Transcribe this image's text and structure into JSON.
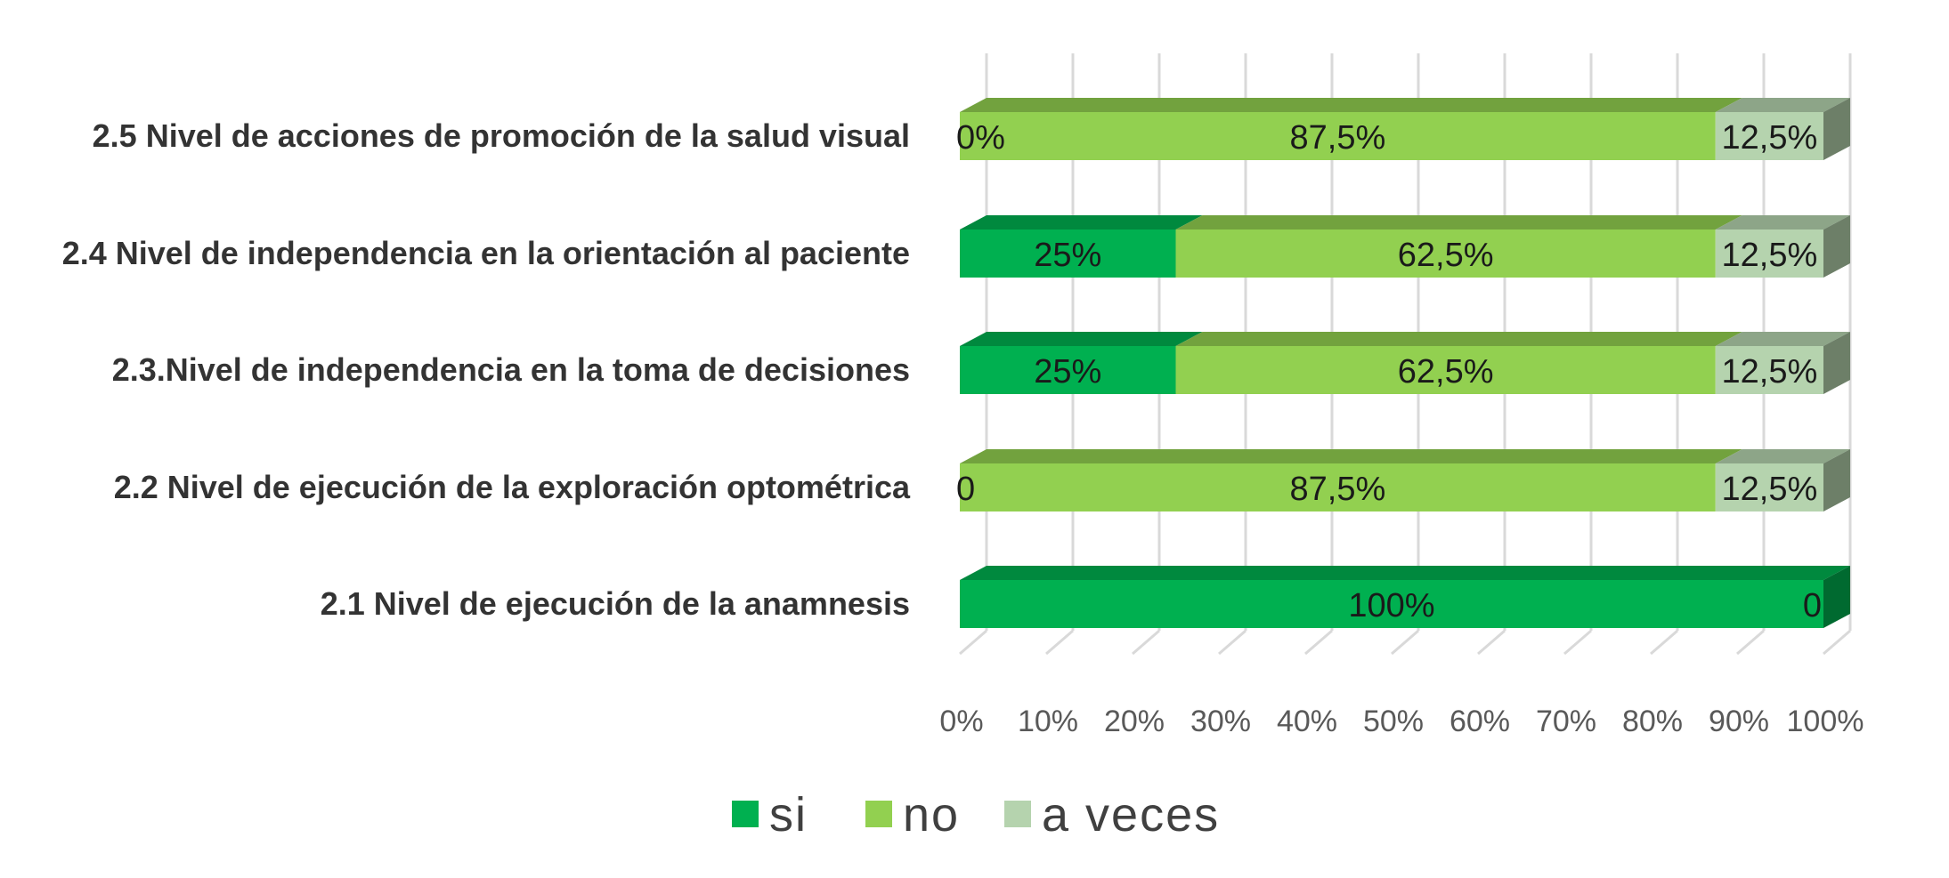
{
  "chart_data": {
    "type": "bar",
    "orientation": "horizontal",
    "stacked": "100%",
    "style": "3d",
    "categories": [
      "2.5 Nivel de acciones de promoción de la salud visual",
      "2.4 Nivel de independencia en la orientación al paciente",
      "2.3.Nivel de independencia en la toma de decisiones",
      "2.2 Nivel de ejecución de la exploración optométrica",
      "2.1 Nivel de ejecución de la anamnesis"
    ],
    "series": [
      {
        "name": "si",
        "color": "#00B050",
        "values": [
          0,
          25,
          25,
          0,
          100
        ],
        "labels": [
          "0%",
          "25%",
          "25%",
          "0",
          "100%"
        ]
      },
      {
        "name": "no",
        "color": "#92D050",
        "values": [
          87.5,
          62.5,
          62.5,
          87.5,
          0
        ],
        "labels": [
          "87,5%",
          "62,5%",
          "62,5%",
          "87,5%",
          ""
        ]
      },
      {
        "name": "a veces",
        "color": "#B5D3AE",
        "values": [
          12.5,
          12.5,
          12.5,
          12.5,
          0
        ],
        "labels": [
          "12,5%",
          "12,5%",
          "12,5%",
          "12,5%",
          "0"
        ]
      }
    ],
    "x_ticks": [
      "0%",
      "10%",
      "20%",
      "30%",
      "40%",
      "50%",
      "60%",
      "70%",
      "80%",
      "90%",
      "100%"
    ],
    "xlim": [
      0,
      100
    ],
    "grid": true,
    "legend_position": "bottom"
  }
}
